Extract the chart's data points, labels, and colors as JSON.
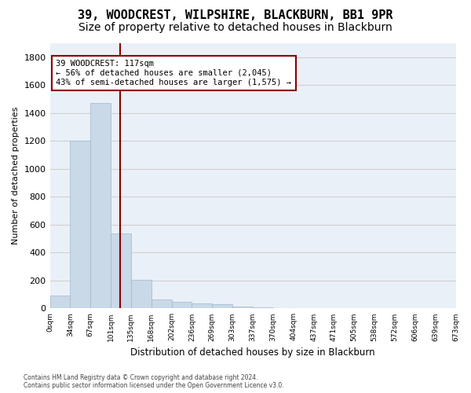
{
  "title_line1": "39, WOODCREST, WILPSHIRE, BLACKBURN, BB1 9PR",
  "title_line2": "Size of property relative to detached houses in Blackburn",
  "xlabel": "Distribution of detached houses by size in Blackburn",
  "ylabel": "Number of detached properties",
  "footer_line1": "Contains HM Land Registry data © Crown copyright and database right 2024.",
  "footer_line2": "Contains public sector information licensed under the Open Government Licence v3.0.",
  "annotation_line1": "39 WOODCREST: 117sqm",
  "annotation_line2": "← 56% of detached houses are smaller (2,045)",
  "annotation_line3": "43% of semi-detached houses are larger (1,575) →",
  "bar_values": [
    90,
    1200,
    1470,
    540,
    205,
    65,
    45,
    35,
    28,
    15,
    8,
    5,
    2,
    0,
    0,
    0,
    0,
    0,
    0,
    0
  ],
  "bar_labels": [
    "0sqm",
    "34sqm",
    "67sqm",
    "101sqm",
    "135sqm",
    "168sqm",
    "202sqm",
    "236sqm",
    "269sqm",
    "303sqm",
    "337sqm",
    "370sqm",
    "404sqm",
    "437sqm",
    "471sqm",
    "505sqm",
    "538sqm",
    "572sqm",
    "606sqm",
    "639sqm",
    "673sqm"
  ],
  "bar_color": "#c9d9e8",
  "bar_edgecolor": "#a0b8cc",
  "vline_color": "#8b0000",
  "ylim": [
    0,
    1900
  ],
  "yticks": [
    0,
    200,
    400,
    600,
    800,
    1000,
    1200,
    1400,
    1600,
    1800
  ],
  "grid_color": "#d0d0d0",
  "bg_color": "#eaf0f8",
  "annotation_box_edgecolor": "#8b0000",
  "title_fontsize": 11,
  "subtitle_fontsize": 10
}
